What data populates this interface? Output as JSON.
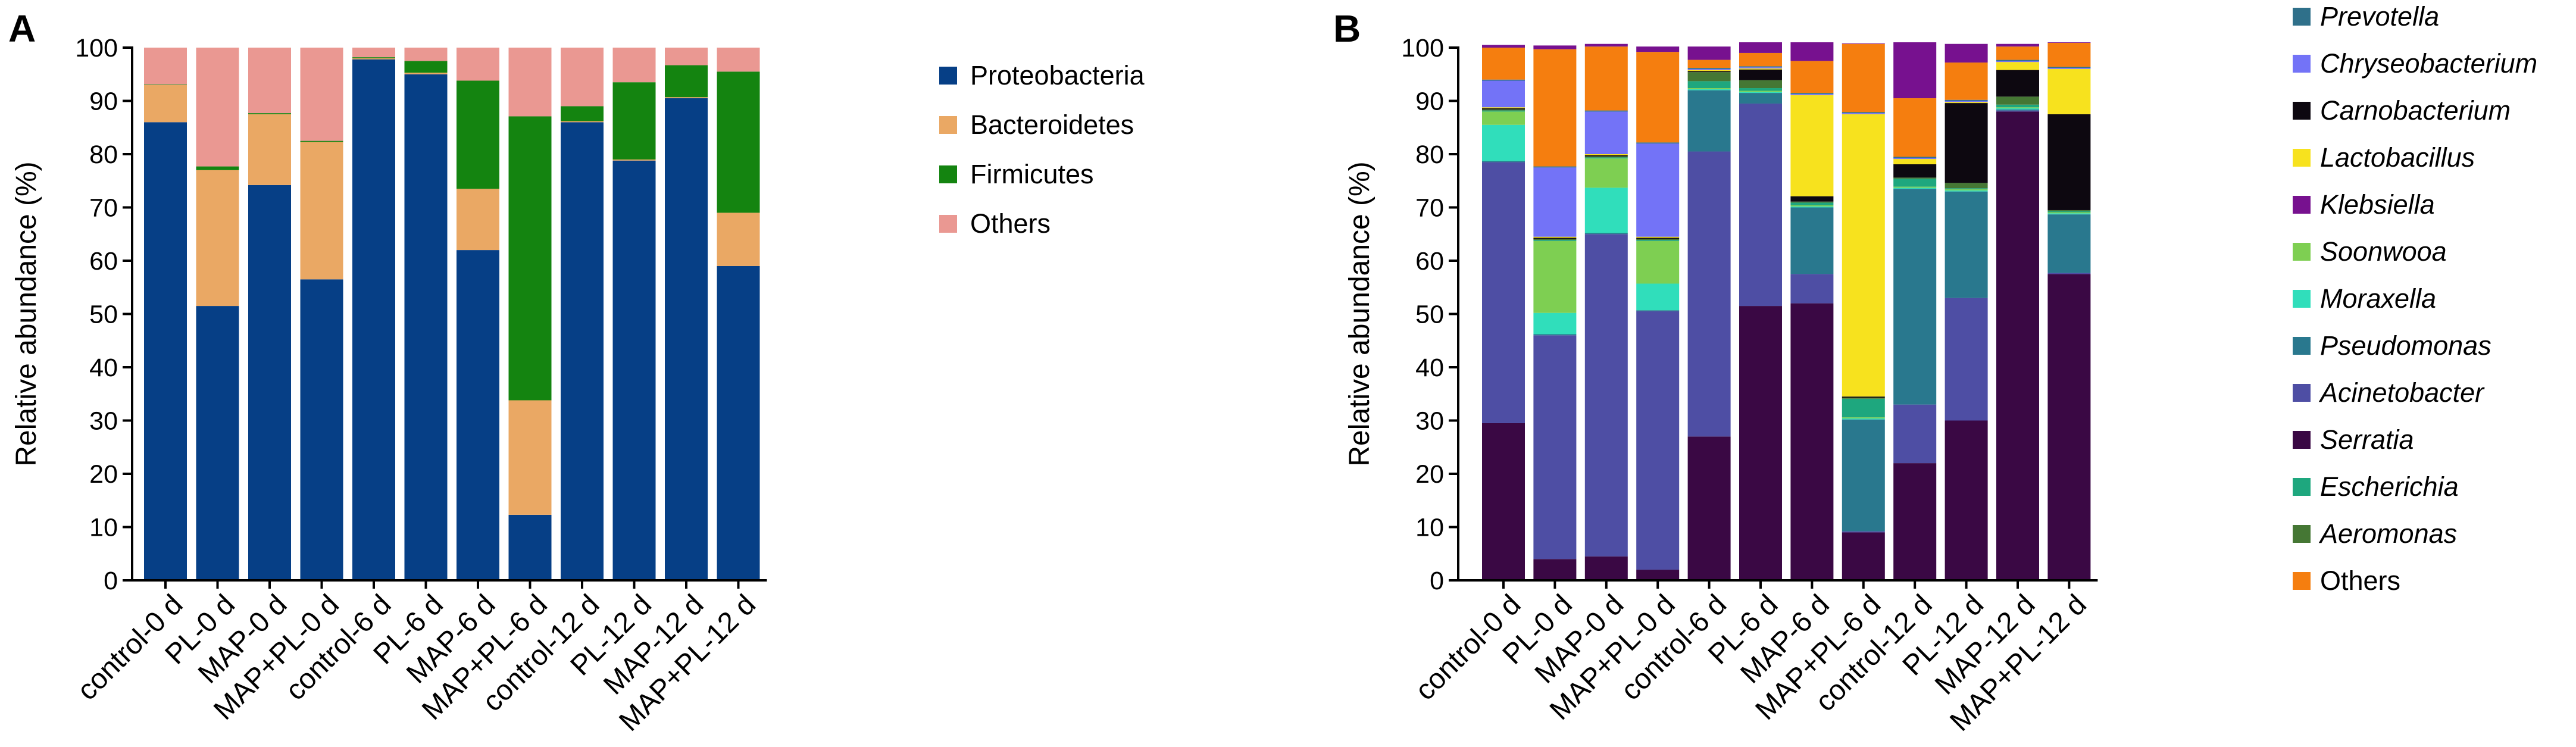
{
  "panels": [
    {
      "label": "A"
    },
    {
      "label": "B"
    }
  ],
  "chart_data": [
    {
      "type": "stacked-bar",
      "panel": "A",
      "ylabel": "Relative abundance (%)",
      "xlabel": "",
      "ylim": [
        0,
        100
      ],
      "yticks": [
        0,
        10,
        20,
        30,
        40,
        50,
        60,
        70,
        80,
        90,
        100
      ],
      "legend_position": "right",
      "categories": [
        "control-0 d",
        "PL-0 d",
        "MAP-0 d",
        "MAP+PL-0 d",
        "control-6 d",
        "PL-6 d",
        "MAP-6 d",
        "MAP+PL-6 d",
        "control-12 d",
        "PL-12 d",
        "MAP-12 d",
        "MAP+PL-12 d"
      ],
      "series": [
        {
          "name": "Proteobacteria",
          "italic": false,
          "color": "#063F86",
          "values": [
            86.0,
            51.5,
            74.2,
            56.5,
            97.8,
            95.0,
            62.0,
            12.3,
            86.0,
            78.8,
            90.5,
            59.0
          ]
        },
        {
          "name": "Bacteroidetes",
          "italic": false,
          "color": "#EAA864",
          "values": [
            7.0,
            25.5,
            13.3,
            25.8,
            0.2,
            0.3,
            11.5,
            21.5,
            0.2,
            0.2,
            0.2,
            10.0
          ]
        },
        {
          "name": "Firmicutes",
          "italic": false,
          "color": "#148410",
          "values": [
            0.1,
            0.7,
            0.2,
            0.2,
            0.2,
            2.2,
            20.3,
            53.3,
            2.8,
            14.5,
            6.0,
            26.5
          ]
        },
        {
          "name": "Others",
          "italic": false,
          "color": "#EA9892",
          "values": [
            6.9,
            22.3,
            12.3,
            17.5,
            1.8,
            2.5,
            6.2,
            12.9,
            11.0,
            6.5,
            3.3,
            4.5
          ]
        }
      ]
    },
    {
      "type": "stacked-bar",
      "panel": "B",
      "ylabel": "Relative abundance (%)",
      "xlabel": "",
      "ylim": [
        0,
        100
      ],
      "yticks": [
        0,
        10,
        20,
        30,
        40,
        50,
        60,
        70,
        80,
        90,
        100
      ],
      "legend_position": "right",
      "categories": [
        "control-0 d",
        "PL-0 d",
        "MAP-0 d",
        "MAP+PL-0 d",
        "control-6 d",
        "PL-6 d",
        "MAP-6 d",
        "MAP+PL-6 d",
        "control-12 d",
        "PL-12 d",
        "MAP-12 d",
        "MAP+PL-12 d"
      ],
      "series": [
        {
          "name": "Serratia",
          "italic": true,
          "color": "#3A0844",
          "values": [
            29.5,
            4.0,
            4.5,
            2.0,
            27.0,
            51.5,
            52.0,
            9.0,
            22.0,
            30.0,
            88.0,
            57.5
          ]
        },
        {
          "name": "Acinetobacter",
          "italic": true,
          "color": "#4E4EA4",
          "values": [
            49.0,
            42.0,
            60.5,
            48.5,
            53.5,
            38.0,
            5.5,
            0.2,
            11.0,
            23.0,
            0.2,
            0.2
          ]
        },
        {
          "name": "Pseudomonas",
          "italic": true,
          "color": "#29788E",
          "values": [
            0.2,
            0.2,
            0.2,
            0.2,
            11.5,
            2.0,
            12.5,
            21.0,
            40.5,
            20.0,
            0.2,
            11.0
          ]
        },
        {
          "name": "Moraxella",
          "italic": true,
          "color": "#30DEBB",
          "values": [
            6.8,
            4.0,
            8.5,
            5.0,
            0.2,
            0.2,
            0.2,
            0.2,
            0.2,
            0.2,
            0.2,
            0.2
          ]
        },
        {
          "name": "Soonwooa",
          "italic": true,
          "color": "#7ECF52",
          "values": [
            2.5,
            13.5,
            5.5,
            8.0,
            0.2,
            0.2,
            0.2,
            0.2,
            0.2,
            0.2,
            0.2,
            0.2
          ]
        },
        {
          "name": "Escherichia",
          "italic": true,
          "color": "#1EA77E",
          "values": [
            0.2,
            0.2,
            0.2,
            0.2,
            1.3,
            0.5,
            0.5,
            3.5,
            1.5,
            0.2,
            0.5,
            0.2
          ]
        },
        {
          "name": "Aeromonas",
          "italic": true,
          "color": "#457734",
          "values": [
            0.2,
            0.2,
            0.2,
            0.2,
            1.7,
            1.5,
            0.2,
            0.2,
            0.2,
            1.0,
            1.5,
            0.2
          ]
        },
        {
          "name": "Carnobacterium",
          "italic": true,
          "color": "#0D0810",
          "values": [
            0.2,
            0.2,
            0.2,
            0.2,
            0.2,
            2.0,
            1.0,
            0.2,
            2.5,
            15.0,
            5.0,
            18.0
          ]
        },
        {
          "name": "Lactobacillus",
          "italic": true,
          "color": "#F7E21E",
          "values": [
            0.2,
            0.2,
            0.2,
            0.2,
            0.2,
            0.2,
            19.0,
            53.0,
            1.0,
            0.2,
            1.5,
            8.5
          ]
        },
        {
          "name": "Chryseobacterium",
          "italic": true,
          "color": "#7373F7",
          "values": [
            5.0,
            13.0,
            8.0,
            17.5,
            0.2,
            0.2,
            0.2,
            0.2,
            0.2,
            0.2,
            0.2,
            0.2
          ]
        },
        {
          "name": "Prevotella",
          "italic": true,
          "color": "#2F708A",
          "values": [
            0.2,
            0.2,
            0.2,
            0.2,
            0.2,
            0.2,
            0.2,
            0.2,
            0.2,
            0.2,
            0.2,
            0.2
          ]
        },
        {
          "name": "Others",
          "italic": false,
          "color": "#F57E0F",
          "values": [
            6.0,
            22.0,
            12.0,
            17.0,
            1.5,
            2.5,
            6.0,
            12.8,
            11.0,
            7.0,
            2.5,
            4.5
          ]
        },
        {
          "name": "Klebsiella",
          "italic": true,
          "color": "#77118F",
          "values": [
            0.5,
            0.7,
            0.5,
            1.0,
            2.5,
            2.0,
            3.5,
            0.1,
            10.5,
            3.5,
            0.5,
            0.1
          ]
        }
      ],
      "legend_order": [
        "Prevotella",
        "Chryseobacterium",
        "Carnobacterium",
        "Lactobacillus",
        "Klebsiella",
        "Soonwooa",
        "Moraxella",
        "Pseudomonas",
        "Acinetobacter",
        "Serratia",
        "Escherichia",
        "Aeromonas",
        "Others"
      ]
    }
  ]
}
